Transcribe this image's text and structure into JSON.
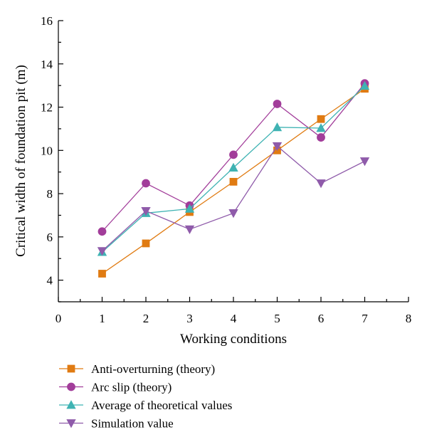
{
  "chart_data": {
    "type": "line",
    "title": "",
    "xlabel": "Working conditions",
    "ylabel": "Critical width of foundation pit (m)",
    "xlim": [
      0,
      8
    ],
    "ylim": [
      3,
      16
    ],
    "xticks": [
      0,
      1,
      2,
      3,
      4,
      5,
      6,
      7,
      8
    ],
    "yticks": [
      4,
      6,
      8,
      10,
      12,
      14,
      16
    ],
    "grid": false,
    "legend_position": "bottom",
    "x": [
      1,
      2,
      3,
      4,
      5,
      6,
      7
    ],
    "series": [
      {
        "name": "Anti-overturning (theory)",
        "marker": "square",
        "color": "#E07B12",
        "values": [
          4.3,
          5.7,
          7.15,
          8.55,
          10.0,
          11.45,
          12.85
        ]
      },
      {
        "name": "Arc slip (theory)",
        "marker": "circle",
        "color": "#A23D9A",
        "values": [
          6.25,
          8.48,
          7.45,
          9.8,
          12.15,
          10.6,
          13.1
        ]
      },
      {
        "name": "Average of theoretical values",
        "marker": "triangle-up",
        "color": "#3FB3B3",
        "values": [
          5.3,
          7.1,
          7.3,
          9.2,
          11.07,
          11.03,
          12.98
        ]
      },
      {
        "name": "Simulation value",
        "marker": "triangle-down",
        "color": "#8F5BAA",
        "values": [
          5.35,
          7.2,
          6.35,
          7.1,
          10.2,
          8.48,
          9.5
        ]
      }
    ]
  }
}
